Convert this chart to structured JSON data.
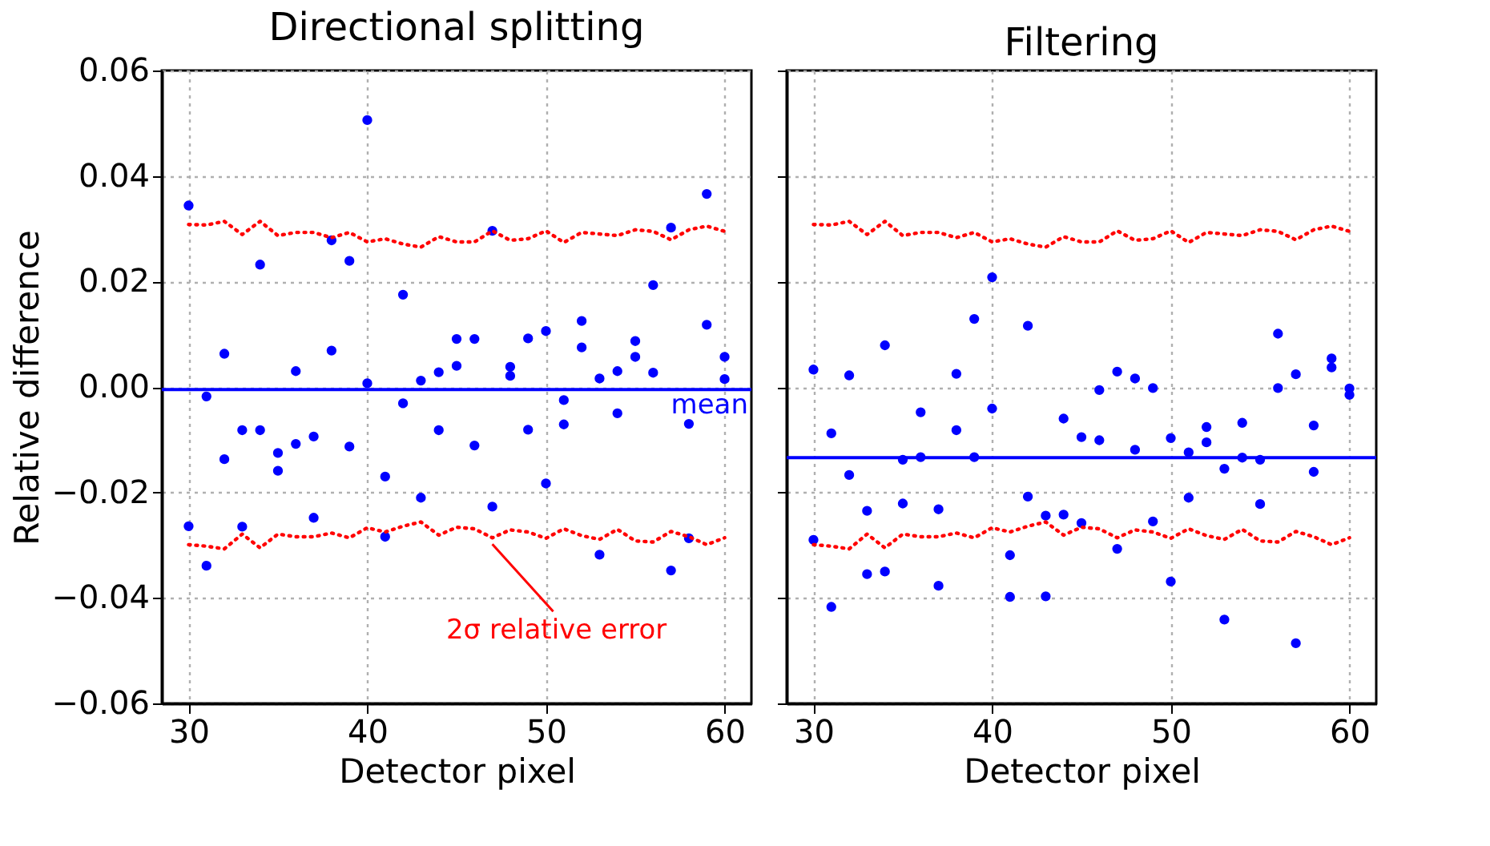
{
  "chart_data": [
    {
      "type": "scatter",
      "title": "Directional splitting",
      "xlabel": "Detector pixel",
      "ylabel": "Relative difference",
      "xlim": [
        28.5,
        61.5
      ],
      "xticks": [
        30,
        40,
        50,
        60
      ],
      "ylim": [
        -0.06,
        0.06
      ],
      "yticks": [
        {
          "value": -0.06,
          "label": "−0.06"
        },
        {
          "value": -0.04,
          "label": "−0.04"
        },
        {
          "value": -0.02,
          "label": "−0.02"
        },
        {
          "value": 0,
          "label": "0.00"
        },
        {
          "value": 0.02,
          "label": "0.02"
        },
        {
          "value": 0.04,
          "label": "0.04"
        },
        {
          "value": 0.06,
          "label": "0.06"
        }
      ],
      "grid": true,
      "series": [
        {
          "marker": "circle",
          "color": "#0000ff",
          "x": [
            30,
            30,
            31,
            31,
            32,
            32,
            33,
            33,
            34,
            34,
            35,
            35,
            36,
            36,
            37,
            37,
            38,
            38,
            39,
            39,
            40,
            40,
            41,
            41,
            42,
            42,
            43,
            43,
            44,
            44,
            45,
            45,
            46,
            46,
            47,
            47,
            48,
            48,
            49,
            49,
            50,
            50,
            51,
            51,
            52,
            52,
            53,
            53,
            54,
            54,
            55,
            55,
            56,
            56,
            57,
            57,
            58,
            58,
            59,
            59,
            60,
            60
          ],
          "values": [
            0.0344,
            -0.0264,
            -0.0018,
            -0.0339,
            0.0063,
            -0.0137,
            -0.0082,
            -0.0265,
            0.0232,
            -0.0082,
            -0.0125,
            -0.0159,
            0.003,
            -0.0108,
            -0.0094,
            -0.0248,
            0.0278,
            0.0069,
            0.0239,
            -0.0113,
            0.0506,
            0.0007,
            -0.017,
            -0.0284,
            0.0175,
            -0.0031,
            0.0012,
            -0.021,
            0.0028,
            -0.0082,
            0.0091,
            0.004,
            0.0091,
            -0.0111,
            0.0296,
            -0.0227,
            0.0038,
            0.0021,
            0.0092,
            -0.0081,
            0.0106,
            -0.0183,
            -0.0025,
            -0.0071,
            0.0125,
            0.0075,
            0.0016,
            -0.0318,
            0.003,
            -0.005,
            0.0087,
            0.0057,
            0.0193,
            0.0027,
            0.0302,
            -0.0348,
            -0.007,
            -0.0287,
            0.0366,
            0.0118,
            0.0057,
            0.0015
          ]
        },
        {
          "type": "line",
          "line_style": "dotted",
          "color": "#ff0000",
          "x": [
            30,
            31,
            32,
            33,
            34,
            35,
            36,
            37,
            38,
            39,
            40,
            41,
            42,
            43,
            44,
            45,
            46,
            47,
            48,
            49,
            50,
            51,
            52,
            53,
            54,
            55,
            56,
            57,
            58,
            59,
            60
          ],
          "values": [
            0.0308,
            0.0307,
            0.0314,
            0.0289,
            0.0314,
            0.0287,
            0.0293,
            0.0293,
            0.0283,
            0.0293,
            0.0275,
            0.0281,
            0.0271,
            0.0265,
            0.0285,
            0.0275,
            0.0275,
            0.0296,
            0.0278,
            0.0281,
            0.0296,
            0.0274,
            0.0293,
            0.029,
            0.0287,
            0.0298,
            0.0295,
            0.0279,
            0.0298,
            0.0305,
            0.0295
          ]
        },
        {
          "type": "line",
          "line_style": "dotted",
          "color": "#ff0000",
          "x": [
            30,
            31,
            32,
            33,
            34,
            35,
            36,
            37,
            38,
            39,
            40,
            41,
            42,
            43,
            44,
            45,
            46,
            47,
            48,
            49,
            50,
            51,
            52,
            53,
            54,
            55,
            56,
            57,
            58,
            59,
            60
          ],
          "values": [
            -0.0299,
            -0.0302,
            -0.0307,
            -0.0279,
            -0.0305,
            -0.0279,
            -0.0284,
            -0.0284,
            -0.0277,
            -0.0286,
            -0.0267,
            -0.0275,
            -0.0264,
            -0.0256,
            -0.0281,
            -0.0266,
            -0.0269,
            -0.0286,
            -0.0271,
            -0.0275,
            -0.0287,
            -0.0269,
            -0.0282,
            -0.0289,
            -0.027,
            -0.0292,
            -0.0294,
            -0.0274,
            -0.0284,
            -0.0299,
            -0.0286
          ]
        }
      ],
      "ref_lines": [
        {
          "axis": "y",
          "value": -0.0005,
          "label": "mean",
          "color": "#0000ff"
        }
      ],
      "annotations": [
        {
          "text": "2σ relative error",
          "x": 47,
          "y": -0.0286
        }
      ]
    },
    {
      "type": "scatter",
      "title": "Filtering",
      "xlabel": "Detector pixel",
      "xlim": [
        28.5,
        61.5
      ],
      "xticks": [
        30,
        40,
        50,
        60
      ],
      "ylim": [
        -0.06,
        0.06
      ],
      "yticks": [
        {
          "value": -0.06,
          "label": null
        },
        {
          "value": -0.04,
          "label": null
        },
        {
          "value": -0.02,
          "label": null
        },
        {
          "value": 0,
          "label": null
        },
        {
          "value": 0.02,
          "label": null
        },
        {
          "value": 0.04,
          "label": null
        },
        {
          "value": 0.06,
          "label": null
        }
      ],
      "tick_labels": "x",
      "grid": true,
      "series": [
        {
          "marker": "circle",
          "color": "#0000ff",
          "x": [
            30,
            30,
            31,
            31,
            32,
            32,
            33,
            33,
            34,
            34,
            35,
            35,
            36,
            36,
            37,
            37,
            38,
            38,
            39,
            39,
            40,
            40,
            41,
            41,
            42,
            42,
            43,
            43,
            44,
            44,
            45,
            45,
            46,
            46,
            47,
            47,
            48,
            48,
            49,
            49,
            50,
            50,
            51,
            51,
            52,
            52,
            53,
            53,
            54,
            54,
            55,
            55,
            56,
            56,
            57,
            57,
            58,
            58,
            59,
            59,
            60,
            60
          ],
          "values": [
            0.0033,
            -0.029,
            -0.0088,
            -0.0417,
            0.0022,
            -0.0167,
            -0.0235,
            -0.0355,
            0.0079,
            -0.035,
            -0.0138,
            -0.0221,
            -0.0048,
            -0.0133,
            -0.0232,
            -0.0377,
            0.0025,
            -0.0082,
            0.0129,
            -0.0133,
            0.0208,
            -0.0041,
            -0.0319,
            -0.0398,
            0.0116,
            -0.0208,
            -0.0244,
            -0.0397,
            -0.006,
            -0.0242,
            -0.0095,
            -0.0258,
            -0.0006,
            -0.0101,
            0.0029,
            -0.0307,
            0.0016,
            -0.0119,
            -0.0002,
            -0.0255,
            -0.0097,
            -0.0369,
            -0.0124,
            -0.021,
            -0.0076,
            -0.0105,
            -0.0155,
            -0.0441,
            -0.0068,
            -0.0134,
            -0.0138,
            -0.0222,
            0.0101,
            -0.0002,
            0.0024,
            -0.0486,
            -0.0073,
            -0.0161,
            0.0054,
            0.0037,
            -0.0003,
            -0.0015
          ]
        },
        {
          "type": "line",
          "line_style": "dotted",
          "color": "#ff0000",
          "x": [
            30,
            31,
            32,
            33,
            34,
            35,
            36,
            37,
            38,
            39,
            40,
            41,
            42,
            43,
            44,
            45,
            46,
            47,
            48,
            49,
            50,
            51,
            52,
            53,
            54,
            55,
            56,
            57,
            58,
            59,
            60
          ],
          "values": [
            0.0308,
            0.0307,
            0.0314,
            0.0289,
            0.0314,
            0.0287,
            0.0293,
            0.0293,
            0.0283,
            0.0293,
            0.0275,
            0.0281,
            0.0271,
            0.0265,
            0.0285,
            0.0275,
            0.0275,
            0.0296,
            0.0278,
            0.0281,
            0.0296,
            0.0274,
            0.0293,
            0.029,
            0.0287,
            0.0298,
            0.0295,
            0.0279,
            0.0298,
            0.0305,
            0.0295
          ]
        },
        {
          "type": "line",
          "line_style": "dotted",
          "color": "#ff0000",
          "x": [
            30,
            31,
            32,
            33,
            34,
            35,
            36,
            37,
            38,
            39,
            40,
            41,
            42,
            43,
            44,
            45,
            46,
            47,
            48,
            49,
            50,
            51,
            52,
            53,
            54,
            55,
            56,
            57,
            58,
            59,
            60
          ],
          "values": [
            -0.0299,
            -0.0302,
            -0.0307,
            -0.0279,
            -0.0305,
            -0.0279,
            -0.0284,
            -0.0284,
            -0.0277,
            -0.0286,
            -0.0267,
            -0.0275,
            -0.0264,
            -0.0256,
            -0.0281,
            -0.0266,
            -0.0269,
            -0.0286,
            -0.0271,
            -0.0275,
            -0.0287,
            -0.0269,
            -0.0282,
            -0.0289,
            -0.027,
            -0.0292,
            -0.0294,
            -0.0274,
            -0.0284,
            -0.0299,
            -0.0286
          ]
        }
      ],
      "ref_lines": [
        {
          "axis": "y",
          "value": -0.0134,
          "color": "#0000ff"
        }
      ]
    }
  ]
}
